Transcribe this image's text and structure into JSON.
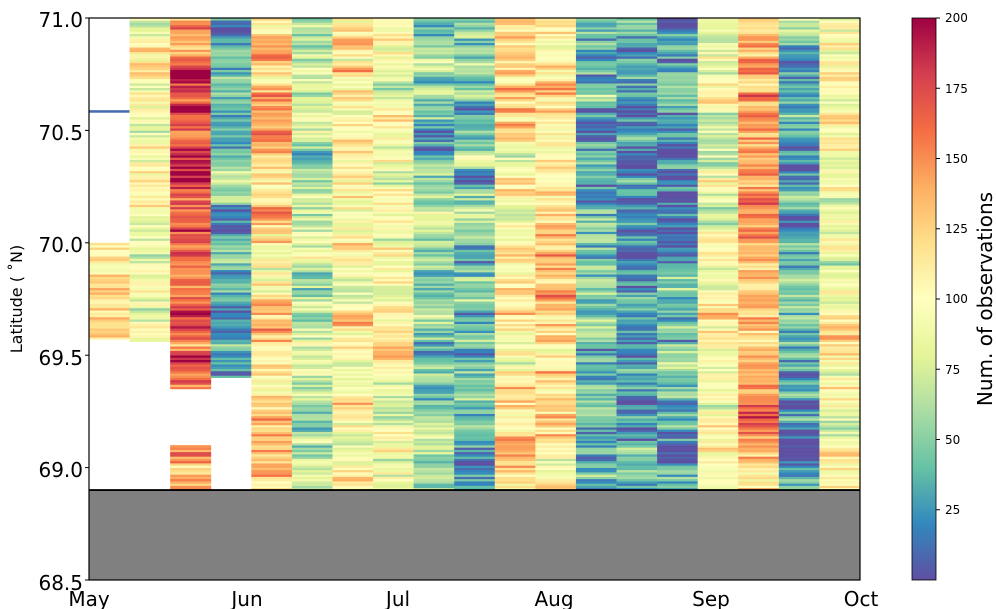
{
  "chart_data": {
    "type": "heatmap",
    "title": "",
    "ylabel": "Latitude ( ˚N)",
    "xlabel": "",
    "ylim": [
      68.5,
      71.0
    ],
    "x_tick_labels": [
      "May",
      "Jun",
      "Jul",
      "Aug",
      "Sep",
      "Oct"
    ],
    "y_tick_labels": [
      "68.5",
      "69.0",
      "69.5",
      "70.0",
      "70.5",
      "71.0"
    ],
    "y_tick_values": [
      68.5,
      69.0,
      69.5,
      70.0,
      70.5,
      71.0
    ],
    "land_below_latitude": 68.9,
    "colorbar": {
      "label": "Num. of observations",
      "min": 0,
      "max": 200,
      "tick_values": [
        25,
        50,
        75,
        100,
        125,
        150,
        175,
        200
      ],
      "tick_labels": [
        "25",
        "50",
        "75",
        "100",
        "125",
        "150",
        "175",
        "200"
      ],
      "colormap": [
        "#5e4fa2",
        "#3288bd",
        "#66c2a5",
        "#abdda4",
        "#e6f598",
        "#ffffbf",
        "#fee08b",
        "#fdae61",
        "#f46d43",
        "#d53e4f",
        "#9e0142"
      ]
    },
    "columns": [
      {
        "coverage": [
          69.57,
          70.0
        ],
        "mean": 110,
        "extra_rows": [
          70.58
        ]
      },
      {
        "coverage": [
          69.56,
          71.0
        ],
        "mean": 95
      },
      {
        "coverage": [
          68.9,
          71.0
        ],
        "mean": 160,
        "gap": [
          69.1,
          69.35
        ]
      },
      {
        "coverage": [
          69.4,
          71.0
        ],
        "mean": 40
      },
      {
        "coverage": [
          68.9,
          71.0
        ],
        "mean": 120
      },
      {
        "coverage": [
          68.9,
          71.0
        ],
        "mean": 70
      },
      {
        "coverage": [
          68.9,
          71.0
        ],
        "mean": 105
      },
      {
        "coverage": [
          68.9,
          71.0
        ],
        "mean": 85
      },
      {
        "coverage": [
          68.9,
          71.0
        ],
        "mean": 55
      },
      {
        "coverage": [
          68.9,
          71.0
        ],
        "mean": 45
      },
      {
        "coverage": [
          68.9,
          71.0
        ],
        "mean": 115
      },
      {
        "coverage": [
          68.9,
          71.0
        ],
        "mean": 120
      },
      {
        "coverage": [
          68.9,
          71.0
        ],
        "mean": 40
      },
      {
        "coverage": [
          68.9,
          71.0
        ],
        "mean": 25
      },
      {
        "coverage": [
          68.9,
          71.0
        ],
        "mean": 35
      },
      {
        "coverage": [
          68.9,
          71.0
        ],
        "mean": 90
      },
      {
        "coverage": [
          68.9,
          71.0
        ],
        "mean": 140
      },
      {
        "coverage": [
          68.9,
          71.0
        ],
        "mean": 40
      },
      {
        "coverage": [
          68.9,
          71.0
        ],
        "mean": 95
      }
    ]
  }
}
